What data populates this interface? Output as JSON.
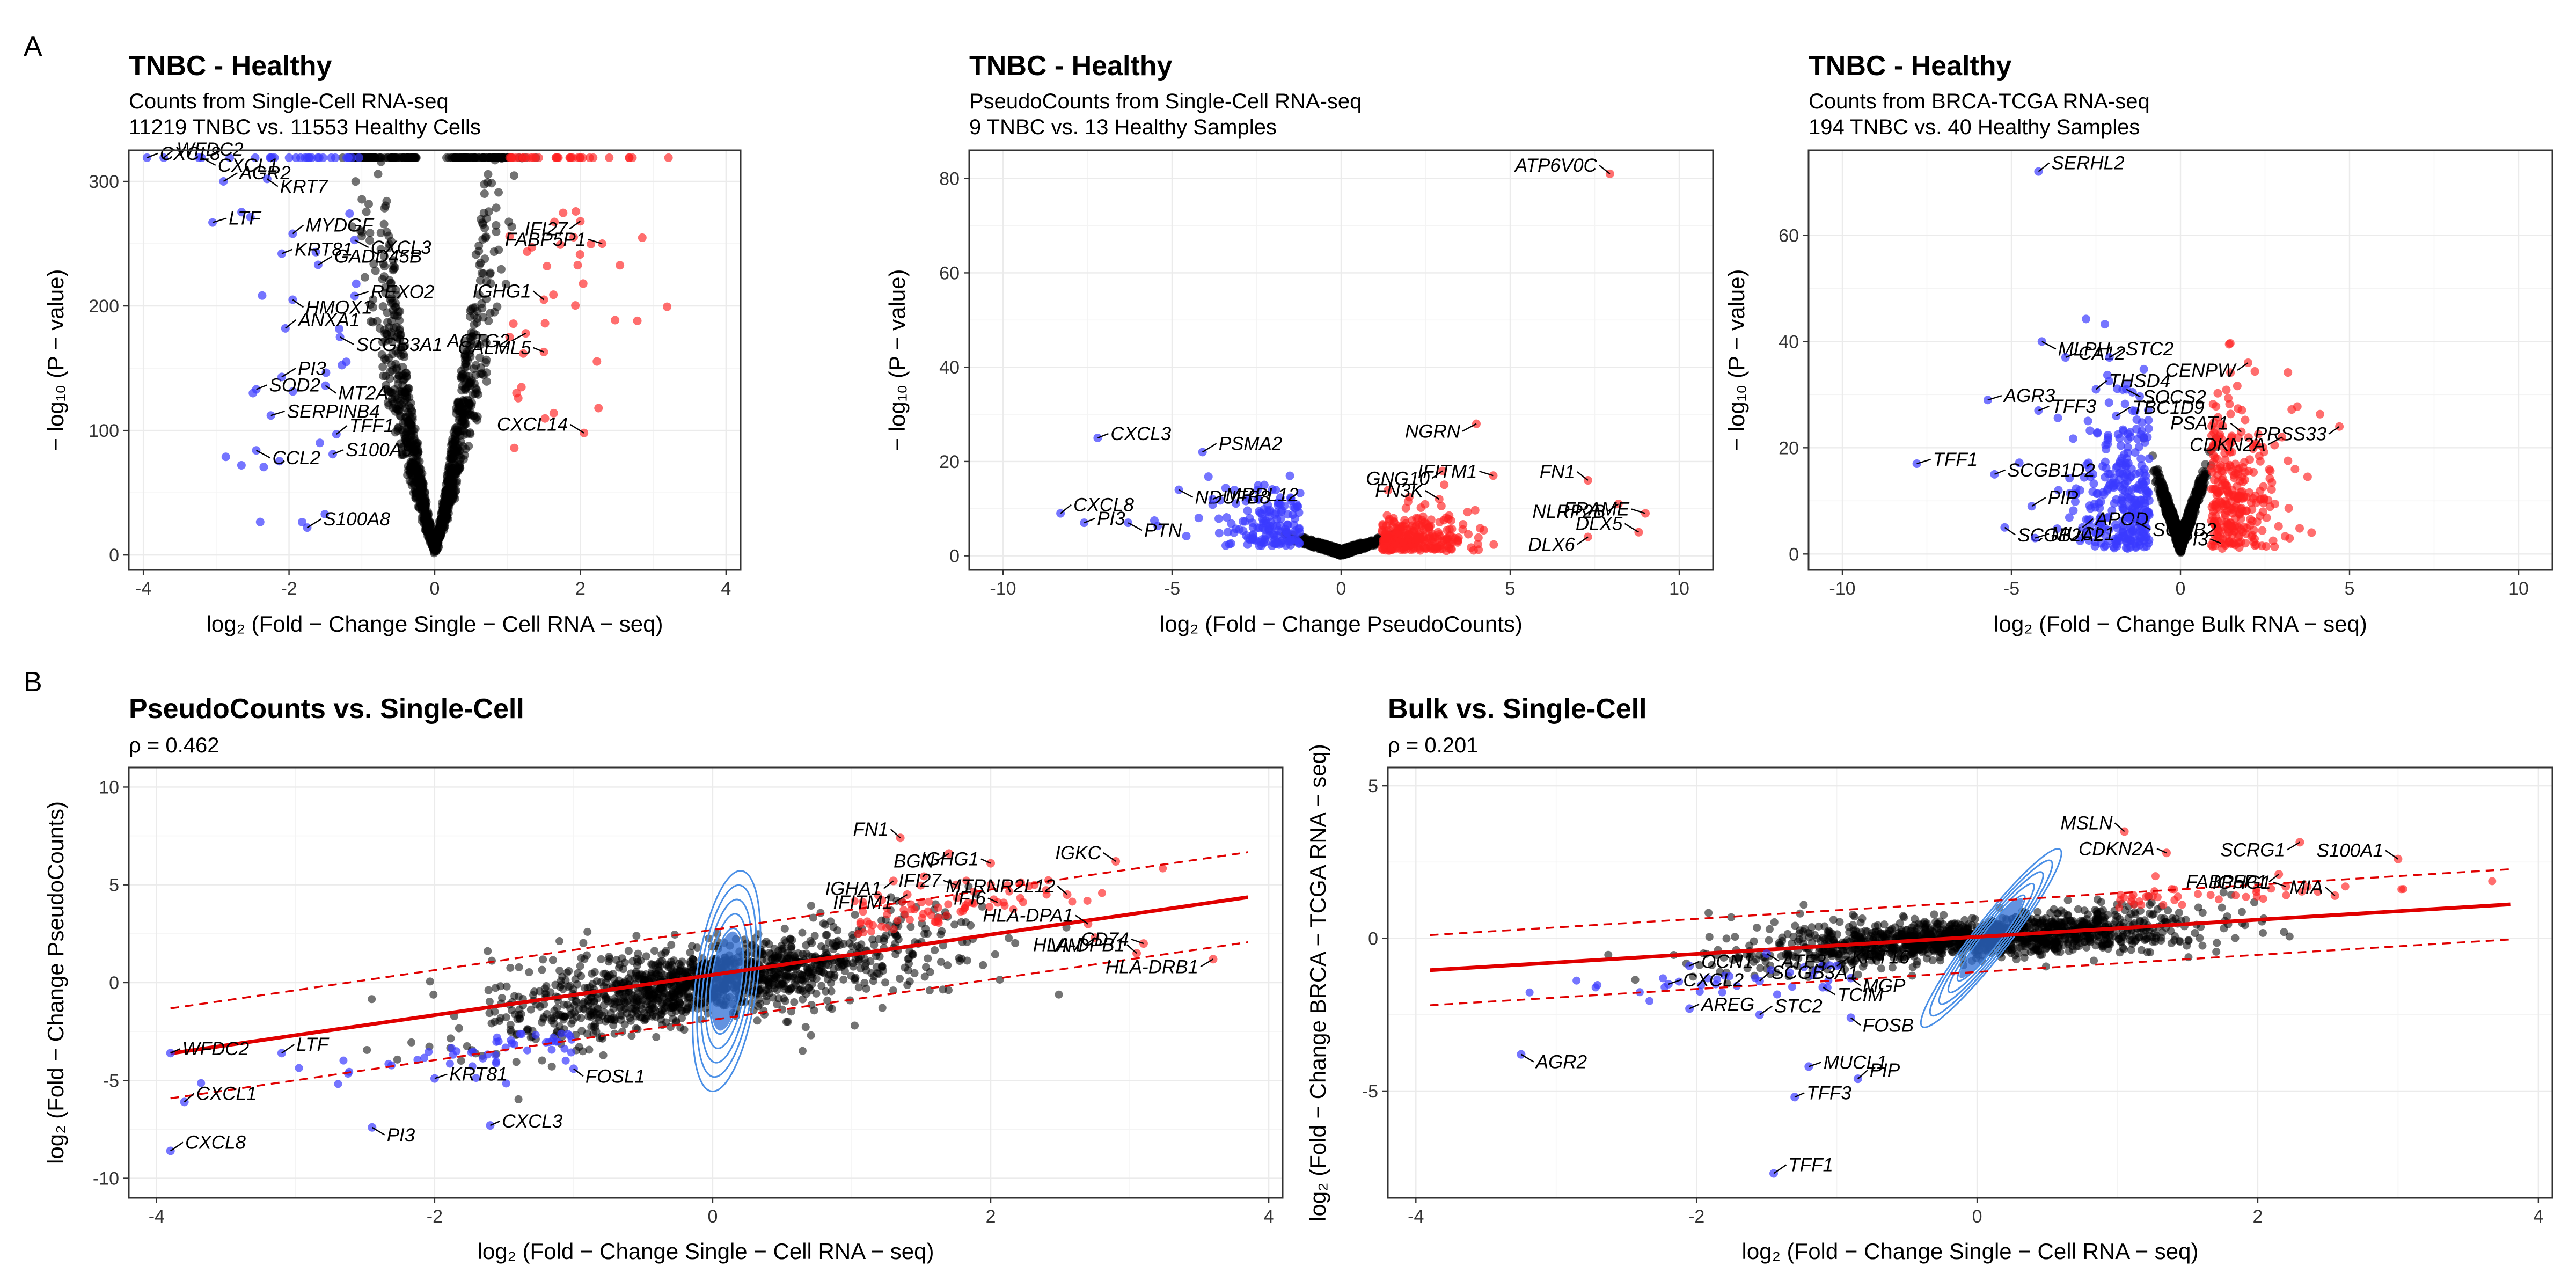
{
  "panel_letters": {
    "a": "A",
    "b": "B"
  },
  "chart_data": [
    {
      "id": "a1",
      "type": "scatter",
      "title": "TNBC - Healthy",
      "subtitle_1": "Counts from Single-Cell RNA-seq",
      "subtitle_2": "11219 TNBC vs. 11553 Healthy Cells",
      "xlabel": "log₂ (Fold − Change Single − Cell RNA − seq)",
      "ylabel": "− log₁₀ (P − value)",
      "xlim": [
        -4.2,
        4.2
      ],
      "ylim": [
        -12,
        325
      ],
      "xticks": [
        -4,
        -2,
        0,
        2,
        4
      ],
      "yticks": [
        0,
        100,
        200,
        300
      ],
      "grid": true,
      "volcano": {
        "neg_edge": -1.0,
        "pos_edge": 1.0,
        "cap": 319,
        "n_black": 1200,
        "n_red": 65,
        "n_blue": 45
      },
      "labels": [
        {
          "text": "WFDC2",
          "x": -3.72,
          "y": 319
        },
        {
          "text": "CXCL1",
          "x": -3.2,
          "y": 319
        },
        {
          "text": "CXCL8",
          "x": -3.95,
          "y": 319
        },
        {
          "text": "AGR2",
          "x": -2.9,
          "y": 300
        },
        {
          "text": "KRT7",
          "x": -2.3,
          "y": 302
        },
        {
          "text": "LTF",
          "x": -3.05,
          "y": 267
        },
        {
          "text": "MYDGF",
          "x": -1.95,
          "y": 258
        },
        {
          "text": "CXCL3",
          "x": -1.1,
          "y": 253
        },
        {
          "text": "KRT81",
          "x": -2.1,
          "y": 242
        },
        {
          "text": "GADD45B",
          "x": -1.6,
          "y": 233
        },
        {
          "text": "HMOX1",
          "x": -1.95,
          "y": 205
        },
        {
          "text": "REXO2",
          "x": -1.1,
          "y": 208
        },
        {
          "text": "ANXA1",
          "x": -2.05,
          "y": 182
        },
        {
          "text": "SCGB3A1",
          "x": -1.3,
          "y": 175
        },
        {
          "text": "SOD2",
          "x": -2.45,
          "y": 133
        },
        {
          "text": "PI3",
          "x": -2.1,
          "y": 143
        },
        {
          "text": "MT2A",
          "x": -1.5,
          "y": 136
        },
        {
          "text": "SERPINB4",
          "x": -2.25,
          "y": 112
        },
        {
          "text": "TFF1",
          "x": -1.35,
          "y": 97
        },
        {
          "text": "CCL2",
          "x": -2.45,
          "y": 84
        },
        {
          "text": "S100A9",
          "x": -1.4,
          "y": 81
        },
        {
          "text": "S100A8",
          "x": -1.75,
          "y": 22
        },
        {
          "text": "IFI27",
          "x": 2.0,
          "y": 268
        },
        {
          "text": "FABP5P1",
          "x": 2.3,
          "y": 250
        },
        {
          "text": "IGHG1",
          "x": 1.5,
          "y": 205
        },
        {
          "text": "ACTG2",
          "x": 1.25,
          "y": 178
        },
        {
          "text": "CALML5",
          "x": 1.5,
          "y": 163
        },
        {
          "text": "CXCL14",
          "x": 2.05,
          "y": 98
        }
      ]
    },
    {
      "id": "a2",
      "type": "scatter",
      "title": "TNBC - Healthy",
      "subtitle_1": "PseudoCounts from Single-Cell RNA-seq",
      "subtitle_2": "9 TNBC vs. 13 Healthy Samples",
      "xlabel": "log₂ (Fold − Change PseudoCounts)",
      "ylabel": "− log₁₀ (P − value)",
      "xlim": [
        -11,
        11
      ],
      "ylim": [
        -3,
        86
      ],
      "xticks": [
        -10,
        -5,
        0,
        5,
        10
      ],
      "yticks": [
        0,
        20,
        40,
        60,
        80
      ],
      "grid": true,
      "volcano": {
        "n_black": 650,
        "n_red": 260,
        "n_blue": 150
      },
      "labels": [
        {
          "text": "ATP6V0C",
          "x": 7.95,
          "y": 81
        },
        {
          "text": "NGRN",
          "x": 4.0,
          "y": 28
        },
        {
          "text": "CXCL3",
          "x": -7.2,
          "y": 25
        },
        {
          "text": "PSMA2",
          "x": -4.1,
          "y": 22
        },
        {
          "text": "GNG10",
          "x": 3.0,
          "y": 18
        },
        {
          "text": "IFITM1",
          "x": 4.5,
          "y": 17
        },
        {
          "text": "FN1",
          "x": 7.3,
          "y": 16
        },
        {
          "text": "NDUFB8",
          "x": -4.8,
          "y": 14
        },
        {
          "text": "MRPL12",
          "x": -3.8,
          "y": 12
        },
        {
          "text": "FN3K",
          "x": 2.9,
          "y": 12
        },
        {
          "text": "NLRP2B",
          "x": 8.2,
          "y": 11
        },
        {
          "text": "FRAME",
          "x": 9.0,
          "y": 9
        },
        {
          "text": "CXCL8",
          "x": -8.3,
          "y": 9
        },
        {
          "text": "PTN",
          "x": -6.3,
          "y": 7
        },
        {
          "text": "PI3",
          "x": -7.6,
          "y": 7
        },
        {
          "text": "DLX5",
          "x": 8.8,
          "y": 5
        },
        {
          "text": "DLX6",
          "x": 7.3,
          "y": 4
        }
      ]
    },
    {
      "id": "a3",
      "type": "scatter",
      "title": "TNBC - Healthy",
      "subtitle_1": "Counts from BRCA-TCGA RNA-seq",
      "subtitle_2": "194 TNBC vs. 40 Healthy Samples",
      "xlabel": "log₂ (Fold − Change Bulk RNA − seq)",
      "ylabel": "− log₁₀ (P − value)",
      "xlim": [
        -11,
        11
      ],
      "ylim": [
        -3,
        76
      ],
      "xticks": [
        -10,
        -5,
        0,
        5,
        10
      ],
      "yticks": [
        0,
        20,
        40,
        60
      ],
      "grid": true,
      "volcano": {
        "n_black": 700,
        "n_red": 280,
        "n_blue": 300
      },
      "labels": [
        {
          "text": "SERHL2",
          "x": -4.2,
          "y": 72
        },
        {
          "text": "MLPH",
          "x": -4.1,
          "y": 40
        },
        {
          "text": "CA12",
          "x": -3.4,
          "y": 37
        },
        {
          "text": "STC2",
          "x": -2.1,
          "y": 37
        },
        {
          "text": "CENPW",
          "x": 2.0,
          "y": 36
        },
        {
          "text": "AGR3",
          "x": -5.7,
          "y": 29
        },
        {
          "text": "THSD4",
          "x": -2.5,
          "y": 31
        },
        {
          "text": "SOCS2",
          "x": -1.6,
          "y": 31
        },
        {
          "text": "TFF3",
          "x": -4.2,
          "y": 27
        },
        {
          "text": "TBC1D9",
          "x": -1.9,
          "y": 26
        },
        {
          "text": "PRSS33",
          "x": 4.7,
          "y": 24
        },
        {
          "text": "TFF1",
          "x": -7.8,
          "y": 17
        },
        {
          "text": "PSAT1",
          "x": 1.8,
          "y": 23
        },
        {
          "text": "CDKN2A",
          "x": 3.0,
          "y": 22
        },
        {
          "text": "SCGB1D2",
          "x": -5.5,
          "y": 15
        },
        {
          "text": "PIP",
          "x": -4.4,
          "y": 9
        },
        {
          "text": "SCGB2A2",
          "x": -5.2,
          "y": 5
        },
        {
          "text": "MUCL1",
          "x": -4.3,
          "y": 3
        },
        {
          "text": "APOD",
          "x": -2.9,
          "y": 5
        },
        {
          "text": "SCGB2",
          "x": -1.3,
          "y": 6
        },
        {
          "text": "PI3",
          "x": 1.2,
          "y": 2
        }
      ]
    },
    {
      "id": "b1",
      "type": "scatter",
      "title": "PseudoCounts vs. Single-Cell",
      "subtitle": "ρ = 0.462",
      "xlabel": "log₂ (Fold − Change Single − Cell RNA − seq)",
      "ylabel": "log₂ (Fold − Change PseudoCounts)",
      "xlim": [
        -4.2,
        4.1
      ],
      "ylim": [
        -11,
        11
      ],
      "xticks": [
        -4,
        -2,
        0,
        2,
        4
      ],
      "yticks": [
        -10,
        -5,
        0,
        5,
        10
      ],
      "grid": true,
      "fit": {
        "slope": 1.03,
        "intercept": 0.4,
        "band": 2.3,
        "x_range": [
          -3.9,
          3.85
        ]
      },
      "scatter": {
        "n_black": 1400,
        "n_red": 75,
        "n_blue": 50,
        "slope": 1.03,
        "intercept": 0.4
      },
      "labels": [
        {
          "text": "FN1",
          "x": 1.35,
          "y": 7.4
        },
        {
          "text": "BGN",
          "x": 1.7,
          "y": 6.6
        },
        {
          "text": "IGHG1",
          "x": 2.0,
          "y": 6.1
        },
        {
          "text": "IGKC",
          "x": 2.9,
          "y": 6.2
        },
        {
          "text": "IGHA1",
          "x": 1.3,
          "y": 5.2
        },
        {
          "text": "IFI27",
          "x": 1.75,
          "y": 5.0
        },
        {
          "text": "MTRNR2L12",
          "x": 2.55,
          "y": 4.5
        },
        {
          "text": "IFITM1",
          "x": 1.4,
          "y": 4.5
        },
        {
          "text": "IFI6",
          "x": 2.05,
          "y": 4.1
        },
        {
          "text": "HLA-DPA1",
          "x": 2.7,
          "y": 3.0
        },
        {
          "text": "VIM",
          "x": 2.75,
          "y": 2.3
        },
        {
          "text": "CD74",
          "x": 3.1,
          "y": 2.0
        },
        {
          "text": "HLA-DPB1",
          "x": 3.05,
          "y": 1.5
        },
        {
          "text": "HLA-DRB1",
          "x": 3.6,
          "y": 1.2
        },
        {
          "text": "WFDC2",
          "x": -3.9,
          "y": -3.6
        },
        {
          "text": "LTF",
          "x": -3.1,
          "y": -3.6
        },
        {
          "text": "FOSL1",
          "x": -1.0,
          "y": -4.4
        },
        {
          "text": "KRT81",
          "x": -2.0,
          "y": -4.9
        },
        {
          "text": "CXCL1",
          "x": -3.8,
          "y": -6.1
        },
        {
          "text": "PI3",
          "x": -2.45,
          "y": -7.4
        },
        {
          "text": "CXCL3",
          "x": -1.6,
          "y": -7.3
        },
        {
          "text": "CXCL8",
          "x": -3.9,
          "y": -8.6
        }
      ]
    },
    {
      "id": "b2",
      "type": "scatter",
      "title": "Bulk vs. Single-Cell",
      "subtitle": "ρ = 0.201",
      "xlabel": "log₂ (Fold − Change Single − Cell RNA − seq)",
      "ylabel": "log₂ (Fold − Change BRCA − TCGA RNA − seq)",
      "xlim": [
        -4.2,
        4.1
      ],
      "ylim": [
        -8.5,
        5.6
      ],
      "xticks": [
        -4,
        -2,
        0,
        2,
        4
      ],
      "yticks": [
        -5,
        0,
        5
      ],
      "grid": true,
      "fit": {
        "slope": 0.28,
        "intercept": 0.05,
        "band": 1.15,
        "x_range": [
          -3.9,
          3.8
        ]
      },
      "scatter": {
        "n_black": 1400,
        "n_red": 40,
        "n_blue": 30,
        "slope": 0.28,
        "intercept": 0.05
      },
      "labels": [
        {
          "text": "MSLN",
          "x": 1.05,
          "y": 3.5
        },
        {
          "text": "SCRG1",
          "x": 2.3,
          "y": 3.15
        },
        {
          "text": "CDKN2A",
          "x": 1.35,
          "y": 2.8
        },
        {
          "text": "S100A1",
          "x": 3.0,
          "y": 2.6
        },
        {
          "text": "FABP5P1",
          "x": 2.15,
          "y": 2.1
        },
        {
          "text": "IGHG1",
          "x": 2.2,
          "y": 1.7
        },
        {
          "text": "MIA",
          "x": 2.55,
          "y": 1.4
        },
        {
          "text": "ATF3",
          "x": -1.5,
          "y": -0.5
        },
        {
          "text": "OCN1",
          "x": -2.05,
          "y": -0.9
        },
        {
          "text": "KRT16",
          "x": -1.0,
          "y": -0.9
        },
        {
          "text": "MGP",
          "x": -0.9,
          "y": -1.3
        },
        {
          "text": "CXCL2",
          "x": -2.2,
          "y": -1.5
        },
        {
          "text": "SCGB3A1",
          "x": -1.55,
          "y": -1.4
        },
        {
          "text": "TCIM",
          "x": -1.1,
          "y": -1.6
        },
        {
          "text": "AREG",
          "x": -2.05,
          "y": -2.3
        },
        {
          "text": "STC2",
          "x": -1.55,
          "y": -2.5
        },
        {
          "text": "FOSB",
          "x": -0.9,
          "y": -2.6
        },
        {
          "text": "MUCL1",
          "x": -1.2,
          "y": -4.2
        },
        {
          "text": "PIP",
          "x": -0.85,
          "y": -4.6
        },
        {
          "text": "AGR2",
          "x": -3.25,
          "y": -3.8
        },
        {
          "text": "TFF3",
          "x": -1.3,
          "y": -5.2
        },
        {
          "text": "TFF1",
          "x": -1.45,
          "y": -7.7
        }
      ]
    }
  ]
}
